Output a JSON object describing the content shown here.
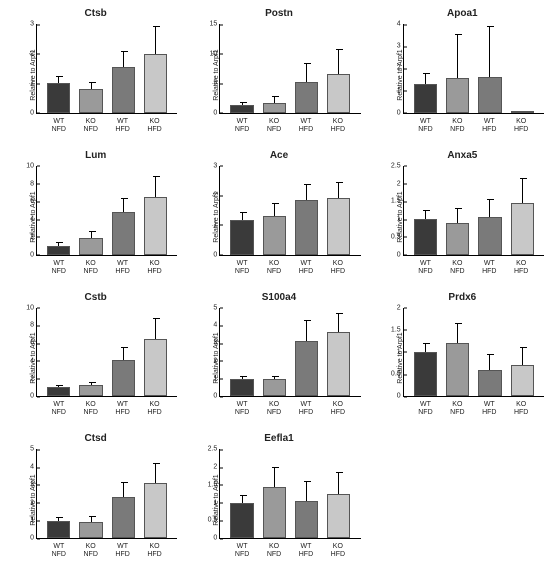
{
  "ylabel": "Relative to Arpf1",
  "categories": [
    "WT\nNFD",
    "KO\nNFD",
    "WT\nHFD",
    "KO\nHFD"
  ],
  "bar_colors": [
    "#3a3a3a",
    "#9a9a9a",
    "#7a7a7a",
    "#c8c8c8"
  ],
  "border_color": "#555555",
  "charts": [
    {
      "title": "Ctsb",
      "ymax": 3,
      "ticks": [
        0,
        1,
        2,
        3
      ],
      "values": [
        1.0,
        0.8,
        1.55,
        2.0
      ],
      "errs": [
        0.25,
        0.25,
        0.55,
        0.95
      ]
    },
    {
      "title": "Postn",
      "ymax": 15,
      "ticks": [
        0,
        5,
        10,
        15
      ],
      "values": [
        1.3,
        1.7,
        5.2,
        6.5
      ],
      "errs": [
        0.6,
        1.1,
        3.2,
        4.3
      ]
    },
    {
      "title": "Apoa1",
      "ymax": 4,
      "ticks": [
        0,
        1,
        2,
        3,
        4
      ],
      "values": [
        1.3,
        1.55,
        1.6,
        0.0
      ],
      "errs": [
        0.5,
        2.0,
        2.3,
        0.0
      ]
    },
    {
      "title": "Lum",
      "ymax": 10,
      "ticks": [
        0,
        2,
        4,
        6,
        8,
        10
      ],
      "values": [
        1.0,
        1.9,
        4.8,
        6.5
      ],
      "errs": [
        0.4,
        0.8,
        1.6,
        2.4
      ]
    },
    {
      "title": "Ace",
      "ymax": 3,
      "ticks": [
        0,
        1,
        2,
        3
      ],
      "values": [
        1.15,
        1.3,
        1.85,
        1.9
      ],
      "errs": [
        0.3,
        0.45,
        0.55,
        0.55
      ]
    },
    {
      "title": "Anxa5",
      "ymax": 2.5,
      "ticks": [
        0,
        0.5,
        1.0,
        1.5,
        2.0,
        2.5
      ],
      "values": [
        1.0,
        0.9,
        1.05,
        1.45
      ],
      "errs": [
        0.25,
        0.4,
        0.5,
        0.7
      ]
    },
    {
      "title": "Cstb",
      "ymax": 10,
      "ticks": [
        0,
        2,
        4,
        6,
        8,
        10
      ],
      "values": [
        1.05,
        1.25,
        4.1,
        6.5
      ],
      "errs": [
        0.25,
        0.35,
        1.5,
        2.3
      ]
    },
    {
      "title": "S100a4",
      "ymax": 5,
      "ticks": [
        0,
        1,
        2,
        3,
        4,
        5
      ],
      "values": [
        1.0,
        0.95,
        3.1,
        3.6
      ],
      "errs": [
        0.15,
        0.2,
        1.2,
        1.1
      ]
    },
    {
      "title": "Prdx6",
      "ymax": 2.0,
      "ticks": [
        0,
        0.5,
        1.0,
        1.5,
        2.0
      ],
      "values": [
        1.0,
        1.2,
        0.6,
        0.7
      ],
      "errs": [
        0.2,
        0.45,
        0.35,
        0.4
      ]
    },
    {
      "title": "Ctsd",
      "ymax": 5,
      "ticks": [
        0,
        1,
        2,
        3,
        4,
        5
      ],
      "values": [
        0.95,
        0.9,
        2.3,
        3.1
      ],
      "errs": [
        0.25,
        0.35,
        0.85,
        1.15
      ]
    },
    {
      "title": "Eefla1",
      "ymax": 2.5,
      "ticks": [
        0,
        0.5,
        1.0,
        1.5,
        2.0,
        2.5
      ],
      "values": [
        1.0,
        1.45,
        1.05,
        1.25
      ],
      "errs": [
        0.2,
        0.55,
        0.55,
        0.6
      ]
    }
  ]
}
